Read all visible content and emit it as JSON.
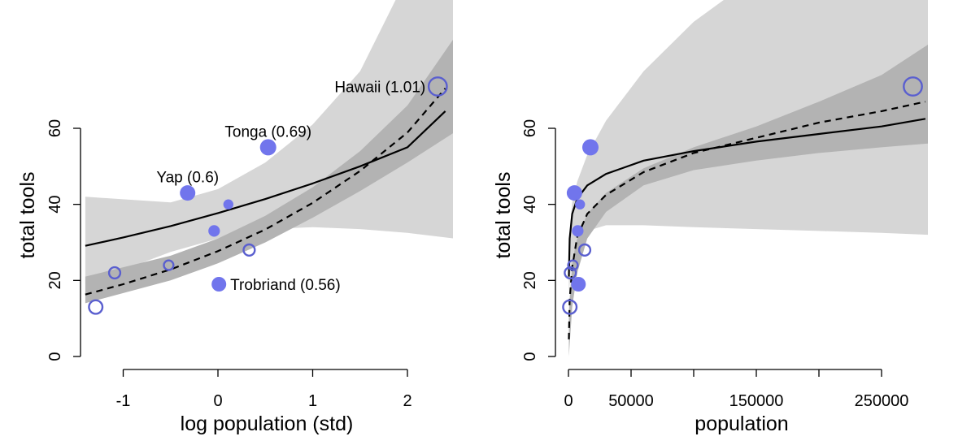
{
  "chart_data": [
    {
      "type": "scatter",
      "title": "",
      "xlabel": "log population (std)",
      "ylabel": "total tools",
      "xlim": [
        -1.45,
        2.5
      ],
      "ylim": [
        -2,
        78
      ],
      "x_ticks": [
        "-1",
        "0",
        "1",
        "2"
      ],
      "x_tick_values": [
        -1,
        0,
        1,
        2
      ],
      "y_ticks": [
        "0",
        "20",
        "40",
        "60"
      ],
      "y_tick_values": [
        0,
        20,
        40,
        60
      ],
      "points": [
        {
          "x": -1.29,
          "y": 13,
          "filled": false,
          "size": 1.0
        },
        {
          "x": -1.09,
          "y": 22,
          "filled": false,
          "size": 0.85
        },
        {
          "x": -0.52,
          "y": 24,
          "filled": false,
          "size": 0.75
        },
        {
          "x": -0.32,
          "y": 43,
          "filled": true,
          "size": 1.0
        },
        {
          "x": -0.04,
          "y": 33,
          "filled": true,
          "size": 0.75
        },
        {
          "x": 0.01,
          "y": 19,
          "filled": true,
          "size": 0.95
        },
        {
          "x": 0.11,
          "y": 40,
          "filled": true,
          "size": 0.65
        },
        {
          "x": 0.33,
          "y": 28,
          "filled": false,
          "size": 0.85
        },
        {
          "x": 0.53,
          "y": 55,
          "filled": true,
          "size": 1.05
        },
        {
          "x": 2.32,
          "y": 71,
          "filled": false,
          "size": 1.3
        }
      ],
      "annotations": [
        {
          "text": "Hawaii (1.01)",
          "x": 2.32,
          "y": 71,
          "side": "left"
        },
        {
          "text": "Tonga (0.69)",
          "x": 0.53,
          "y": 55,
          "side": "above"
        },
        {
          "text": "Yap (0.6)",
          "x": -0.32,
          "y": 43,
          "side": "above"
        },
        {
          "text": "Trobriand (0.56)",
          "x": 0.01,
          "y": 19,
          "side": "right"
        }
      ],
      "series": [
        {
          "style": "solid",
          "x": [
            -1.4,
            -1.0,
            -0.5,
            0.0,
            0.5,
            1.0,
            1.5,
            2.0,
            2.4
          ],
          "y": [
            29.1,
            31.3,
            34.3,
            37.7,
            41.4,
            45.5,
            50.0,
            55.0,
            64.5
          ]
        },
        {
          "style": "dashed",
          "x": [
            -1.4,
            -1.0,
            -0.5,
            0.0,
            0.5,
            1.0,
            1.5,
            2.0,
            2.4
          ],
          "y": [
            16.3,
            19.0,
            22.9,
            27.7,
            33.4,
            40.4,
            48.8,
            58.9,
            70.5
          ]
        }
      ],
      "bands": [
        {
          "shade": "light",
          "x": [
            -1.4,
            -0.5,
            0.0,
            0.5,
            1.0,
            1.5,
            2.0,
            2.5
          ],
          "lower": [
            19,
            27.5,
            31,
            33.5,
            34,
            33.5,
            32.5,
            31
          ],
          "upper": [
            42,
            40.5,
            44,
            51,
            61,
            75,
            100,
            138
          ]
        },
        {
          "shade": "dark",
          "x": [
            -1.4,
            -0.5,
            0.0,
            0.5,
            1.0,
            1.5,
            2.0,
            2.5
          ],
          "lower": [
            14,
            20,
            24.5,
            30,
            36.5,
            43.5,
            51,
            59
          ],
          "upper": [
            21,
            26.5,
            31,
            37,
            44.5,
            54,
            66,
            84
          ]
        }
      ],
      "colors": {
        "point": "#7175ec",
        "point_stroke": "#5a5fcf",
        "band_light": "#d6d6d6",
        "band_dark": "#b3b3b3"
      },
      "grid": false,
      "legend": "none"
    },
    {
      "type": "scatter",
      "title": "",
      "xlabel": "population",
      "ylabel": "total tools",
      "xlim": [
        -7000,
        287000
      ],
      "ylim": [
        -2,
        78
      ],
      "x_ticks": [
        "0",
        "50000",
        "150000",
        "250000"
      ],
      "x_tick_values": [
        0,
        50000,
        150000,
        250000
      ],
      "x_minor_ticks": [
        100000,
        200000
      ],
      "y_ticks": [
        "0",
        "20",
        "40",
        "60"
      ],
      "y_tick_values": [
        0,
        20,
        40,
        60
      ],
      "points": [
        {
          "x": 1100,
          "y": 13,
          "filled": false,
          "size": 1.0
        },
        {
          "x": 1500,
          "y": 22,
          "filled": false,
          "size": 0.85
        },
        {
          "x": 3600,
          "y": 24,
          "filled": false,
          "size": 0.75
        },
        {
          "x": 4800,
          "y": 43,
          "filled": true,
          "size": 1.0
        },
        {
          "x": 7400,
          "y": 33,
          "filled": true,
          "size": 0.75
        },
        {
          "x": 8000,
          "y": 19,
          "filled": true,
          "size": 0.95
        },
        {
          "x": 9200,
          "y": 40,
          "filled": true,
          "size": 0.65
        },
        {
          "x": 13000,
          "y": 28,
          "filled": false,
          "size": 0.85
        },
        {
          "x": 17500,
          "y": 55,
          "filled": true,
          "size": 1.05
        },
        {
          "x": 275000,
          "y": 71,
          "filled": false,
          "size": 1.3
        }
      ],
      "series": [
        {
          "style": "solid",
          "x": [
            300,
            1000,
            3000,
            7000,
            15000,
            30000,
            60000,
            100000,
            150000,
            200000,
            250000,
            285000
          ],
          "y": [
            21,
            31,
            37.5,
            41.5,
            45,
            48,
            51.5,
            54,
            56.5,
            58.5,
            60.5,
            62.5
          ]
        },
        {
          "style": "dashed",
          "x": [
            300,
            1000,
            3000,
            7000,
            15000,
            30000,
            60000,
            100000,
            150000,
            200000,
            250000,
            285000
          ],
          "y": [
            4.5,
            15,
            23.5,
            31.5,
            37.5,
            42.5,
            48.5,
            53.5,
            57.5,
            61.5,
            64.5,
            67
          ]
        }
      ],
      "bands": [
        {
          "shade": "light",
          "x": [
            300,
            3000,
            7000,
            15000,
            30000,
            60000,
            100000,
            150000,
            200000,
            250000,
            287000
          ],
          "lower": [
            17,
            26,
            29.5,
            33,
            34.5,
            34.5,
            34,
            33.5,
            33,
            32.5,
            32
          ],
          "upper": [
            30,
            40.5,
            46,
            53,
            62,
            75,
            88,
            100,
            112,
            122,
            130
          ]
        },
        {
          "shade": "dark",
          "x": [
            300,
            3000,
            7000,
            15000,
            30000,
            60000,
            100000,
            150000,
            200000,
            250000,
            287000
          ],
          "lower": [
            0,
            13,
            22,
            31,
            38,
            45,
            49,
            51.5,
            53.5,
            55,
            56
          ],
          "upper": [
            12,
            25,
            31,
            37.5,
            43,
            49.5,
            55,
            60.5,
            67,
            74,
            82
          ]
        }
      ],
      "colors": {
        "point": "#7175ec",
        "point_stroke": "#5a5fcf",
        "band_light": "#d6d6d6",
        "band_dark": "#b3b3b3"
      },
      "grid": false,
      "legend": "none"
    }
  ]
}
